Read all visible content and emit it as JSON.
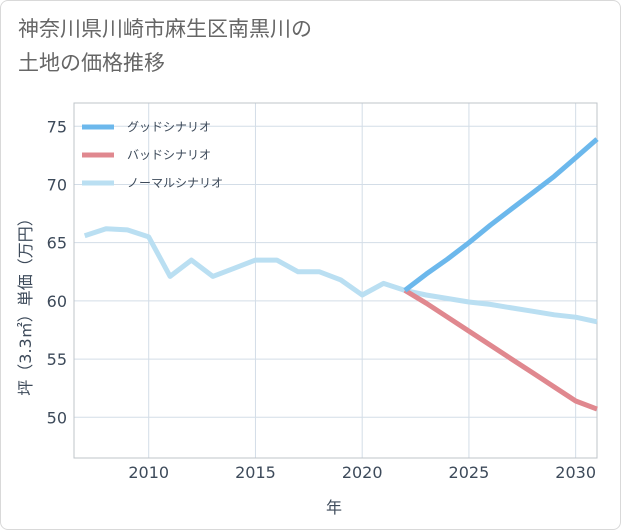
{
  "title_lines": [
    "神奈川県川崎市麻生区南黒川の",
    "土地の価格推移"
  ],
  "chart_data": {
    "type": "line",
    "title": "神奈川県川崎市麻生区南黒川の土地の価格推移",
    "xlabel": "年",
    "ylabel": "坪（3.3㎡）単価（万円）",
    "xlim": [
      2006.5,
      2031
    ],
    "ylim": [
      46.5,
      77
    ],
    "x_ticks": [
      2010,
      2015,
      2020,
      2025,
      2030
    ],
    "y_ticks": [
      50,
      55,
      60,
      65,
      70,
      75
    ],
    "grid": true,
    "legend_position": "top-left",
    "series": [
      {
        "name": "グッドシナリオ",
        "color": "#6cb8ec",
        "points": [
          [
            2022,
            60.9
          ],
          [
            2023,
            62.3
          ],
          [
            2024,
            63.6
          ],
          [
            2025,
            65.0
          ],
          [
            2026,
            66.5
          ],
          [
            2027,
            67.9
          ],
          [
            2028,
            69.3
          ],
          [
            2029,
            70.7
          ],
          [
            2030,
            72.3
          ],
          [
            2031,
            73.9
          ]
        ]
      },
      {
        "name": "バッドシナリオ",
        "color": "#e0888f",
        "points": [
          [
            2022,
            60.9
          ],
          [
            2023,
            59.8
          ],
          [
            2024,
            58.6
          ],
          [
            2025,
            57.4
          ],
          [
            2026,
            56.2
          ],
          [
            2027,
            55.0
          ],
          [
            2028,
            53.8
          ],
          [
            2029,
            52.6
          ],
          [
            2030,
            51.4
          ],
          [
            2031,
            50.7
          ]
        ]
      },
      {
        "name": "ノーマルシナリオ",
        "color": "#badff2",
        "points": [
          [
            2007,
            65.6
          ],
          [
            2008,
            66.2
          ],
          [
            2009,
            66.1
          ],
          [
            2010,
            65.5
          ],
          [
            2011,
            62.1
          ],
          [
            2012,
            63.5
          ],
          [
            2013,
            62.1
          ],
          [
            2014,
            62.8
          ],
          [
            2015,
            63.5
          ],
          [
            2016,
            63.5
          ],
          [
            2017,
            62.5
          ],
          [
            2018,
            62.5
          ],
          [
            2019,
            61.8
          ],
          [
            2020,
            60.5
          ],
          [
            2021,
            61.5
          ],
          [
            2022,
            60.9
          ],
          [
            2023,
            60.5
          ],
          [
            2024,
            60.2
          ],
          [
            2025,
            59.9
          ],
          [
            2026,
            59.7
          ],
          [
            2027,
            59.4
          ],
          [
            2028,
            59.1
          ],
          [
            2029,
            58.8
          ],
          [
            2030,
            58.6
          ],
          [
            2031,
            58.2
          ]
        ]
      }
    ]
  }
}
